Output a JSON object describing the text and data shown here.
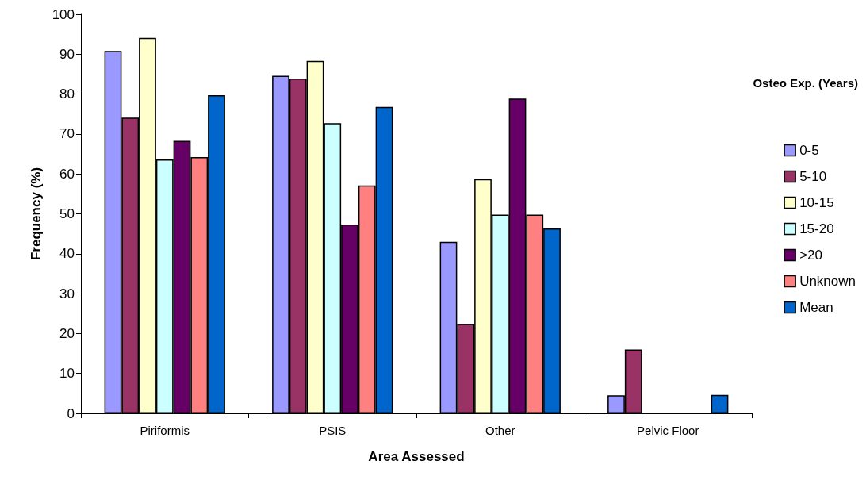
{
  "chart_data": {
    "type": "bar",
    "xlabel": "Area Assessed",
    "ylabel": "Frequency (%)",
    "legend_title": "Osteo Exp. (Years)",
    "legend": "right",
    "grid": false,
    "categories": [
      "Piriformis",
      "PSIS",
      "Other",
      "Pelvic Floor"
    ],
    "ylim": [
      0,
      100
    ],
    "yticks": [
      0,
      10,
      20,
      30,
      40,
      50,
      60,
      70,
      80,
      90,
      100
    ],
    "series": [
      {
        "name": "0-5",
        "color": "#9999ff",
        "values": [
          90.8,
          84.6,
          43.0,
          4.5
        ]
      },
      {
        "name": "5-10",
        "color": "#993366",
        "values": [
          74.1,
          83.9,
          22.4,
          16.0
        ]
      },
      {
        "name": "10-15",
        "color": "#ffffcc",
        "values": [
          94.1,
          88.3,
          58.7,
          null
        ]
      },
      {
        "name": "15-20",
        "color": "#ccffff",
        "values": [
          63.6,
          72.7,
          49.8,
          null
        ]
      },
      {
        "name": ">20",
        "color": "#660066",
        "values": [
          68.3,
          47.3,
          78.9,
          null
        ]
      },
      {
        "name": "Unknown",
        "color": "#ff8080",
        "values": [
          64.2,
          57.1,
          49.8,
          null
        ]
      },
      {
        "name": "Mean",
        "color": "#0066cc",
        "values": [
          79.7,
          76.8,
          46.3,
          4.6
        ]
      }
    ]
  }
}
